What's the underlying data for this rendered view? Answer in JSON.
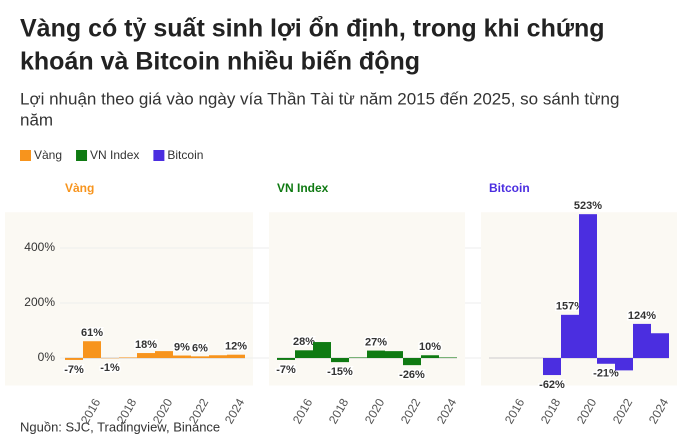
{
  "title": "Vàng có tỷ suất sinh lợi ổn định, trong khi chứng khoán và Bitcoin nhiều biến động",
  "subtitle": "Lợi nhuận theo giá vào ngày vía Thần Tài từ năm 2015 đến 2025, so sánh từng năm",
  "legend": [
    {
      "name": "Vàng",
      "color": "#f7941d"
    },
    {
      "name": "VN Index",
      "color": "#0f7a12"
    },
    {
      "name": "Bitcoin",
      "color": "#4b2ee0"
    }
  ],
  "source": "Nguồn: SJC, Tradingview, Binance",
  "chart_data": [
    {
      "type": "bar",
      "title": "Vàng",
      "color": "#f7941d",
      "categories": [
        null,
        "2016",
        null,
        "2018",
        null,
        "2020",
        null,
        "2022",
        null,
        "2024"
      ],
      "values": [
        -7,
        61,
        -1,
        2,
        18,
        25,
        9,
        6,
        10,
        12
      ],
      "value_labels": [
        "-7%",
        "61%",
        "-1%",
        null,
        "18%",
        null,
        "9%",
        "6%",
        null,
        "12%"
      ],
      "ylim": [
        -100,
        530
      ],
      "yticks": [
        {
          "value": 0,
          "label": "0%"
        },
        {
          "value": 200,
          "label": "200%"
        },
        {
          "value": 400,
          "label": "400%"
        }
      ]
    },
    {
      "type": "bar",
      "title": "VN Index",
      "color": "#0f7a12",
      "categories": [
        null,
        "2016",
        null,
        "2018",
        null,
        "2020",
        null,
        "2022",
        null,
        "2024"
      ],
      "values": [
        -7,
        28,
        58,
        -15,
        2,
        27,
        25,
        -26,
        10,
        2
      ],
      "value_labels": [
        "-7%",
        "28%",
        null,
        "-15%",
        null,
        "27%",
        null,
        "-26%",
        "10%",
        null
      ],
      "ylim": [
        -100,
        530
      ]
    },
    {
      "type": "bar",
      "title": "Bitcoin",
      "color": "#4b2ee0",
      "categories": [
        null,
        "2016",
        null,
        "2018",
        null,
        "2020",
        null,
        "2022",
        null,
        "2024"
      ],
      "values": [
        null,
        null,
        null,
        -62,
        157,
        523,
        -21,
        -45,
        124,
        90
      ],
      "value_labels": [
        null,
        null,
        null,
        "-62%",
        "157%",
        "523%",
        "-21%",
        null,
        "124%",
        null
      ],
      "ylim": [
        -100,
        530
      ]
    }
  ]
}
